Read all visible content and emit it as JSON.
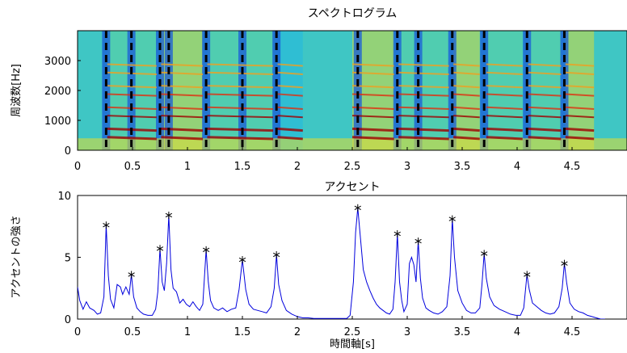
{
  "chart_data": [
    {
      "type": "heatmap",
      "title": "スペクトログラム",
      "xlabel": "",
      "ylabel": "周波数[Hz]",
      "xlim": [
        0,
        5
      ],
      "ylim": [
        0,
        4000
      ],
      "x_ticks": [
        0,
        0.5,
        1,
        1.5,
        2,
        2.5,
        3,
        3.5,
        4,
        4.5
      ],
      "x_tick_labels": [
        "0",
        "0.5",
        "1",
        "1.5",
        "2",
        "2.5",
        "3",
        "3.5",
        "4",
        "4.5"
      ],
      "y_ticks": [
        0,
        1000,
        2000,
        3000
      ],
      "y_tick_labels": [
        "0",
        "1000",
        "2000",
        "3000"
      ],
      "beat_marker_times": [
        0.26,
        0.49,
        0.75,
        0.83,
        1.17,
        1.5,
        1.81,
        2.55,
        2.91,
        3.1,
        3.41,
        3.7,
        4.09,
        4.43
      ],
      "colormap": [
        "#1a5ad8",
        "#22b8e0",
        "#5fd4a0",
        "#d8dc3a",
        "#f0a020",
        "#e03010",
        "#a00000"
      ]
    },
    {
      "type": "line",
      "title": "アクセント",
      "xlabel": "時間軸[s]",
      "ylabel": "アクセントの強さ",
      "xlim": [
        0,
        5
      ],
      "ylim": [
        0,
        10
      ],
      "x_ticks": [
        0,
        0.5,
        1,
        1.5,
        2,
        2.5,
        3,
        3.5,
        4,
        4.5
      ],
      "x_tick_labels": [
        "0",
        "0.5",
        "1",
        "1.5",
        "2",
        "2.5",
        "3",
        "3.5",
        "4",
        "4.5"
      ],
      "y_ticks": [
        0,
        5,
        10
      ],
      "y_tick_labels": [
        "0",
        "5",
        "10"
      ],
      "line_color": "#0000dd",
      "series": [
        {
          "x": [
            0.0,
            0.02,
            0.05,
            0.08,
            0.11,
            0.15,
            0.18,
            0.21,
            0.24,
            0.26,
            0.28,
            0.3,
            0.33,
            0.36,
            0.39,
            0.41,
            0.44,
            0.47,
            0.49,
            0.51,
            0.54,
            0.57,
            0.6,
            0.64,
            0.68,
            0.71,
            0.73,
            0.75,
            0.77,
            0.79,
            0.81,
            0.83,
            0.85,
            0.87,
            0.9,
            0.93,
            0.96,
            0.99,
            1.02,
            1.05,
            1.08,
            1.11,
            1.14,
            1.17,
            1.19,
            1.21,
            1.24,
            1.28,
            1.32,
            1.36,
            1.4,
            1.44,
            1.47,
            1.5,
            1.53,
            1.56,
            1.6,
            1.64,
            1.68,
            1.72,
            1.76,
            1.79,
            1.81,
            1.83,
            1.86,
            1.9,
            1.95,
            2.0,
            2.05,
            2.1,
            2.15,
            2.2,
            2.25,
            2.3,
            2.35,
            2.4,
            2.45,
            2.48,
            2.51,
            2.53,
            2.55,
            2.57,
            2.6,
            2.63,
            2.66,
            2.69,
            2.72,
            2.75,
            2.78,
            2.81,
            2.84,
            2.87,
            2.89,
            2.91,
            2.93,
            2.95,
            2.97,
            3.0,
            3.02,
            3.04,
            3.06,
            3.08,
            3.1,
            3.12,
            3.14,
            3.17,
            3.2,
            3.24,
            3.28,
            3.32,
            3.36,
            3.39,
            3.41,
            3.43,
            3.46,
            3.5,
            3.54,
            3.58,
            3.62,
            3.66,
            3.68,
            3.7,
            3.72,
            3.75,
            3.79,
            3.84,
            3.89,
            3.94,
            3.99,
            4.03,
            4.06,
            4.09,
            4.11,
            4.14,
            4.18,
            4.22,
            4.26,
            4.3,
            4.34,
            4.38,
            4.41,
            4.43,
            4.45,
            4.48,
            4.52,
            4.56,
            4.6,
            4.64,
            4.68,
            4.72,
            4.76,
            4.8
          ],
          "y": [
            2.6,
            1.5,
            0.8,
            1.4,
            0.9,
            0.7,
            0.4,
            0.5,
            1.8,
            7.6,
            3.5,
            1.6,
            0.9,
            2.8,
            2.6,
            2.0,
            2.6,
            2.0,
            3.6,
            1.8,
            0.9,
            0.6,
            0.4,
            0.3,
            0.3,
            0.8,
            2.2,
            5.7,
            3.0,
            2.3,
            4.5,
            8.4,
            4.0,
            2.5,
            2.2,
            1.3,
            1.6,
            1.2,
            1.0,
            1.4,
            1.0,
            0.7,
            1.2,
            5.6,
            3.0,
            1.5,
            0.9,
            0.7,
            0.9,
            0.6,
            0.8,
            0.9,
            2.4,
            4.8,
            2.4,
            1.2,
            0.8,
            0.7,
            0.6,
            0.5,
            1.0,
            2.5,
            5.2,
            2.8,
            1.5,
            0.7,
            0.4,
            0.2,
            0.1,
            0.1,
            0.05,
            0.05,
            0.05,
            0.05,
            0.05,
            0.05,
            0.05,
            0.3,
            3.0,
            7.0,
            9.0,
            7.0,
            4.0,
            3.0,
            2.3,
            1.7,
            1.2,
            0.9,
            0.7,
            0.5,
            0.4,
            0.8,
            3.0,
            6.9,
            3.0,
            1.5,
            0.6,
            1.2,
            4.5,
            5.0,
            4.4,
            3.0,
            6.3,
            3.3,
            1.7,
            0.9,
            0.7,
            0.5,
            0.4,
            0.6,
            1.0,
            3.5,
            8.1,
            5.0,
            2.3,
            1.3,
            0.7,
            0.5,
            0.5,
            0.9,
            2.8,
            5.3,
            3.3,
            1.8,
            1.1,
            0.8,
            0.6,
            0.4,
            0.3,
            0.3,
            0.9,
            3.6,
            2.4,
            1.3,
            1.0,
            0.7,
            0.5,
            0.4,
            0.5,
            1.0,
            2.5,
            4.5,
            3.0,
            1.3,
            0.8,
            0.6,
            0.5,
            0.3,
            0.2,
            0.1,
            0.0,
            0.0
          ]
        }
      ],
      "peaks": {
        "x": [
          0.26,
          0.49,
          0.75,
          0.83,
          1.17,
          1.5,
          1.81,
          2.55,
          2.91,
          3.1,
          3.41,
          3.7,
          4.09,
          4.43
        ],
        "y": [
          7.6,
          3.6,
          5.7,
          8.4,
          5.6,
          4.8,
          5.2,
          9.0,
          6.9,
          6.3,
          8.1,
          5.3,
          3.6,
          4.5
        ]
      }
    }
  ]
}
